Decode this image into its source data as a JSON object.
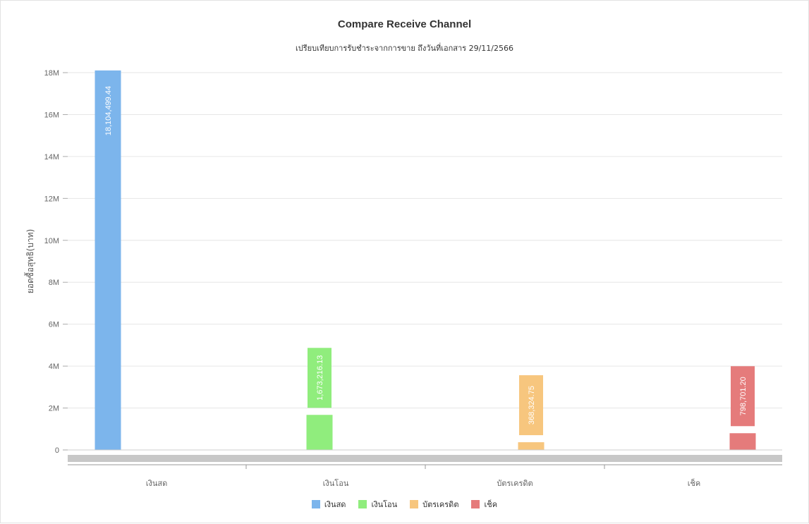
{
  "chart_data": {
    "type": "bar",
    "title": "Compare Receive Channel",
    "subtitle": "เปรียบเทียบการรับชำระจากการขาย ถึงวันที่เอกสาร 29/11/2566",
    "xlabel": "",
    "ylabel": "ยอดซื้อสุทธิ(บาท)",
    "ylim": [
      0,
      18000000
    ],
    "y_ticks": [
      "0",
      "2M",
      "4M",
      "6M",
      "8M",
      "10M",
      "12M",
      "14M",
      "16M",
      "18M"
    ],
    "y_tick_values": [
      0,
      2000000,
      4000000,
      6000000,
      8000000,
      10000000,
      12000000,
      14000000,
      16000000,
      18000000
    ],
    "grid": true,
    "legend_position": "bottom",
    "categories": [
      "เงินสด",
      "เงินโอน",
      "บัตรเครดิต",
      "เช็ค"
    ],
    "series": [
      {
        "name": "เงินสด",
        "color": "#7cb5ec",
        "values": [
          18104499.44,
          0,
          0,
          0
        ],
        "labels": [
          "18,104,499.44",
          "",
          "",
          ""
        ]
      },
      {
        "name": "เงินโอน",
        "color": "#90ed7d",
        "values": [
          0,
          1673216.13,
          0,
          0
        ],
        "labels": [
          "",
          "1,673,216.13",
          "",
          ""
        ]
      },
      {
        "name": "บัตรเครดิต",
        "color": "#f7c67e",
        "values": [
          0,
          0,
          368324.75,
          0
        ],
        "labels": [
          "",
          "",
          "368,324.75",
          ""
        ]
      },
      {
        "name": "เช็ค",
        "color": "#e57b7b",
        "values": [
          0,
          0,
          0,
          798701.2
        ],
        "labels": [
          "",
          "",
          "",
          "798,701.20"
        ]
      }
    ]
  }
}
